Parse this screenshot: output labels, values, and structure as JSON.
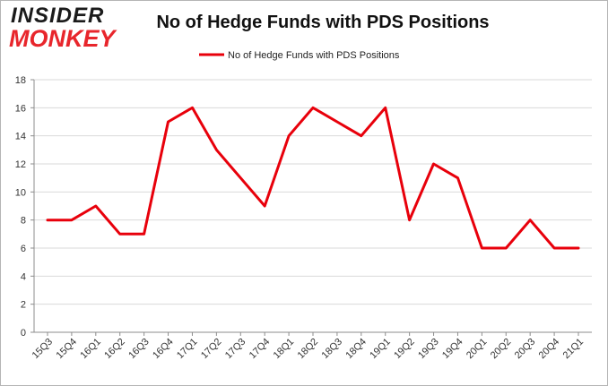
{
  "logo": {
    "line1": "INSIDER",
    "line2": "MONKEY"
  },
  "chart_data": {
    "type": "line",
    "title": "No of Hedge Funds with PDS Positions",
    "categories": [
      "15Q3",
      "15Q4",
      "16Q1",
      "16Q2",
      "16Q3",
      "16Q4",
      "17Q1",
      "17Q2",
      "17Q3",
      "17Q4",
      "18Q1",
      "18Q2",
      "18Q3",
      "18Q4",
      "19Q1",
      "19Q2",
      "19Q3",
      "19Q4",
      "20Q1",
      "20Q2",
      "20Q3",
      "20Q4",
      "21Q1"
    ],
    "series": [
      {
        "name": "No of Hedge Funds with PDS Positions",
        "color": "#e8000b",
        "values": [
          8,
          8,
          9,
          7,
          7,
          15,
          16,
          13,
          11,
          9,
          14,
          16,
          15,
          14,
          16,
          8,
          12,
          11,
          6,
          6,
          8,
          6,
          6
        ]
      }
    ],
    "ylim": [
      0,
      18
    ],
    "yticks": [
      0,
      2,
      4,
      6,
      8,
      10,
      12,
      14,
      16,
      18
    ],
    "xlabel": "",
    "ylabel": "",
    "grid": "horizontal",
    "legend": "top-center"
  }
}
